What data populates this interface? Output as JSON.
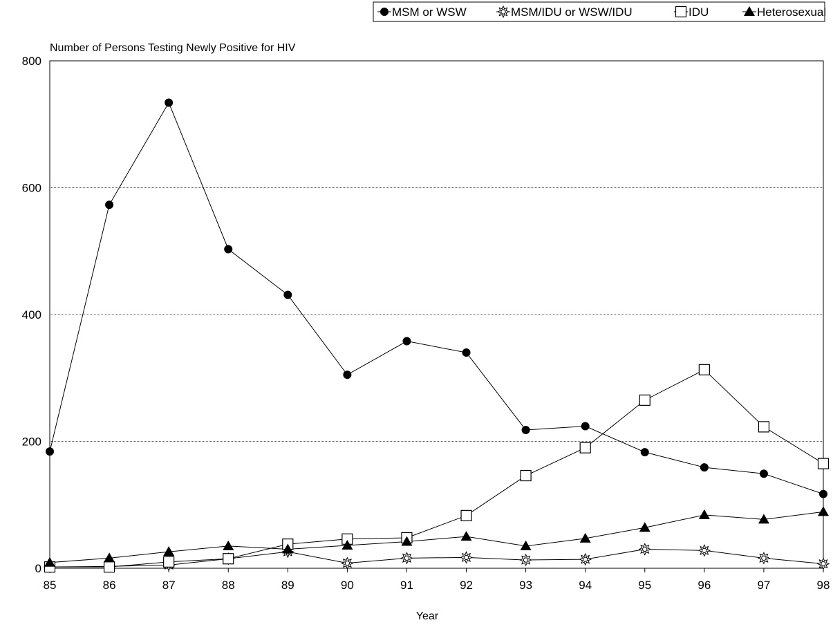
{
  "chart_data": {
    "type": "line",
    "title": "",
    "ylabel": "Number of Persons Testing Newly Positive for HIV",
    "xlabel": "Year",
    "categories": [
      "85",
      "86",
      "87",
      "88",
      "89",
      "90",
      "91",
      "92",
      "93",
      "94",
      "95",
      "96",
      "97",
      "98"
    ],
    "ylim": [
      0,
      800
    ],
    "yticks": [
      0,
      200,
      400,
      600,
      800
    ],
    "grid": true,
    "legend_position": "top-right",
    "series": [
      {
        "name": "MSM or WSW",
        "marker": "filled-circle",
        "values": [
          184,
          573,
          734,
          503,
          431,
          305,
          358,
          340,
          218,
          224,
          183,
          159,
          149,
          117
        ]
      },
      {
        "name": "MSM/IDU or WSW/IDU",
        "marker": "sun",
        "values": [
          2,
          3,
          5,
          15,
          26,
          8,
          16,
          17,
          13,
          14,
          30,
          28,
          16,
          7
        ]
      },
      {
        "name": "IDU",
        "marker": "open-square",
        "values": [
          2,
          2,
          10,
          15,
          38,
          46,
          48,
          83,
          146,
          190,
          265,
          313,
          223,
          165
        ]
      },
      {
        "name": "Heterosexual",
        "marker": "filled-triangle",
        "values": [
          9,
          16,
          26,
          35,
          30,
          36,
          42,
          50,
          35,
          47,
          64,
          84,
          77,
          89
        ]
      }
    ]
  }
}
